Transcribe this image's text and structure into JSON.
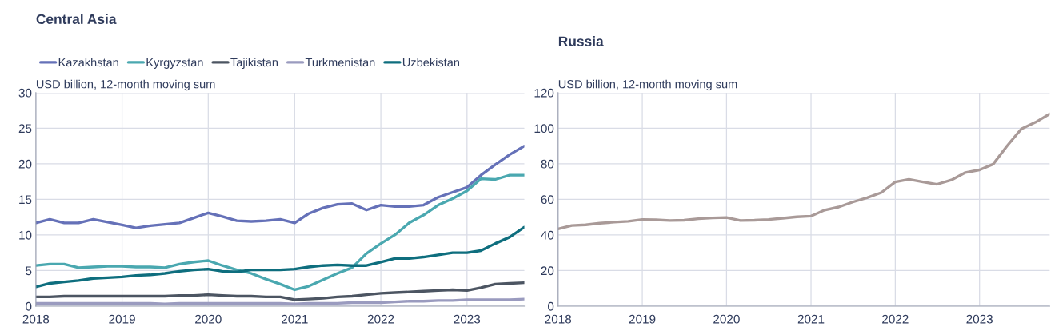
{
  "chart_data": [
    {
      "type": "line",
      "title": "Central Asia",
      "ylabel": "USD billion, 12-month moving sum",
      "x": [
        "2018-01",
        "2018-03",
        "2018-05",
        "2018-07",
        "2018-09",
        "2018-11",
        "2019-01",
        "2019-03",
        "2019-05",
        "2019-07",
        "2019-09",
        "2019-11",
        "2020-01",
        "2020-03",
        "2020-05",
        "2020-07",
        "2020-09",
        "2020-11",
        "2021-01",
        "2021-03",
        "2021-05",
        "2021-07",
        "2021-09",
        "2021-11",
        "2022-01",
        "2022-03",
        "2022-05",
        "2022-07",
        "2022-09",
        "2022-11",
        "2023-01",
        "2023-03",
        "2023-05",
        "2023-07",
        "2023-09"
      ],
      "series": [
        {
          "name": "Kazakhstan",
          "color": "#6571b8",
          "values": [
            11.7,
            12.2,
            11.7,
            11.7,
            12.2,
            11.8,
            11.4,
            11.0,
            11.3,
            11.5,
            11.7,
            12.4,
            13.1,
            12.6,
            12.0,
            11.9,
            12.0,
            12.2,
            11.7,
            13.0,
            13.8,
            14.3,
            14.4,
            13.5,
            14.2,
            14.0,
            14.0,
            14.2,
            15.3,
            16.0,
            16.7,
            18.4,
            19.9,
            21.3,
            22.5
          ]
        },
        {
          "name": "Kyrgyzstan",
          "color": "#4aa8b0",
          "values": [
            5.7,
            5.9,
            5.9,
            5.4,
            5.5,
            5.6,
            5.6,
            5.5,
            5.5,
            5.4,
            5.9,
            6.2,
            6.4,
            5.7,
            5.1,
            4.6,
            3.8,
            3.1,
            2.3,
            2.8,
            3.7,
            4.6,
            5.4,
            7.4,
            8.8,
            10.0,
            11.7,
            12.8,
            14.2,
            15.1,
            16.2,
            17.9,
            17.8,
            18.4,
            18.4
          ]
        },
        {
          "name": "Tajikistan",
          "color": "#4c5562",
          "values": [
            1.3,
            1.3,
            1.4,
            1.4,
            1.4,
            1.4,
            1.4,
            1.4,
            1.4,
            1.4,
            1.5,
            1.5,
            1.6,
            1.5,
            1.4,
            1.4,
            1.3,
            1.3,
            0.9,
            1.0,
            1.1,
            1.3,
            1.4,
            1.6,
            1.8,
            1.9,
            2.0,
            2.1,
            2.2,
            2.3,
            2.2,
            2.6,
            3.1,
            3.2,
            3.3
          ]
        },
        {
          "name": "Turkmenistan",
          "color": "#9a9bbf",
          "values": [
            0.4,
            0.4,
            0.4,
            0.4,
            0.4,
            0.4,
            0.4,
            0.4,
            0.4,
            0.3,
            0.4,
            0.4,
            0.4,
            0.4,
            0.4,
            0.4,
            0.4,
            0.4,
            0.3,
            0.4,
            0.4,
            0.4,
            0.5,
            0.5,
            0.5,
            0.6,
            0.7,
            0.7,
            0.8,
            0.8,
            0.9,
            0.9,
            0.9,
            0.9,
            1.0
          ]
        },
        {
          "name": "Uzbekistan",
          "color": "#0e6e7e",
          "values": [
            2.7,
            3.2,
            3.4,
            3.6,
            3.9,
            4.0,
            4.1,
            4.3,
            4.4,
            4.6,
            4.9,
            5.1,
            5.2,
            4.9,
            4.8,
            5.1,
            5.1,
            5.1,
            5.2,
            5.5,
            5.7,
            5.8,
            5.7,
            5.7,
            6.2,
            6.7,
            6.7,
            6.9,
            7.2,
            7.5,
            7.5,
            7.8,
            8.8,
            9.7,
            11.1
          ]
        }
      ],
      "xlim": [
        "2018-01",
        "2023-09"
      ],
      "xticks": [
        {
          "value": "2018-01",
          "label": "2018"
        },
        {
          "value": "2019-01",
          "label": "2019"
        },
        {
          "value": "2020-01",
          "label": "2020"
        },
        {
          "value": "2021-01",
          "label": "2021"
        },
        {
          "value": "2022-01",
          "label": "2022"
        },
        {
          "value": "2023-01",
          "label": "2023"
        }
      ],
      "ylim": [
        0,
        30
      ],
      "yticks": [
        0,
        5,
        10,
        15,
        20,
        25,
        30
      ],
      "grid": true,
      "legend": "top left",
      "marker": "none",
      "line_style": "solid"
    },
    {
      "type": "line",
      "title": "Russia",
      "ylabel": "USD billion, 12-month moving sum",
      "x": [
        "2018-01",
        "2018-03",
        "2018-05",
        "2018-07",
        "2018-09",
        "2018-11",
        "2019-01",
        "2019-03",
        "2019-05",
        "2019-07",
        "2019-09",
        "2019-11",
        "2020-01",
        "2020-03",
        "2020-05",
        "2020-07",
        "2020-09",
        "2020-11",
        "2021-01",
        "2021-03",
        "2021-05",
        "2021-07",
        "2021-09",
        "2021-11",
        "2022-01",
        "2022-03",
        "2022-05",
        "2022-07",
        "2022-09",
        "2022-11",
        "2023-01",
        "2023-03",
        "2023-05",
        "2023-07",
        "2023-09",
        "2023-11"
      ],
      "series": [
        {
          "color": "#a99a98",
          "values": [
            43.4,
            45.3,
            45.7,
            46.6,
            47.2,
            47.7,
            48.7,
            48.5,
            48.1,
            48.3,
            49.1,
            49.6,
            49.8,
            48.1,
            48.3,
            48.7,
            49.4,
            50.2,
            50.6,
            54.0,
            55.7,
            58.5,
            60.9,
            63.8,
            69.8,
            71.3,
            69.8,
            68.5,
            70.9,
            75.1,
            76.6,
            79.8,
            90.2,
            99.6,
            103.4,
            108.1
          ]
        }
      ],
      "xlim": [
        "2018-01",
        "2023-11"
      ],
      "xticks": [
        {
          "value": "2018-01",
          "label": "2018"
        },
        {
          "value": "2019-01",
          "label": "2019"
        },
        {
          "value": "2020-01",
          "label": "2020"
        },
        {
          "value": "2021-01",
          "label": "2021"
        },
        {
          "value": "2022-01",
          "label": "2022"
        },
        {
          "value": "2023-01",
          "label": "2023"
        }
      ],
      "ylim": [
        0,
        120
      ],
      "yticks": [
        0,
        20,
        40,
        60,
        80,
        100,
        120
      ],
      "grid": true,
      "marker": "none",
      "line_style": "solid"
    }
  ]
}
